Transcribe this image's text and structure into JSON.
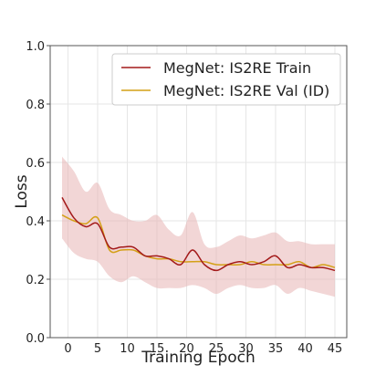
{
  "chart_data": {
    "type": "line",
    "xlabel": "Training Epoch",
    "ylabel": "Loss",
    "xlim": [
      -3,
      47
    ],
    "ylim": [
      0.0,
      1.0
    ],
    "xticks": [
      0,
      5,
      10,
      15,
      20,
      25,
      30,
      35,
      40,
      45
    ],
    "yticks": [
      0.0,
      0.2,
      0.4,
      0.6,
      0.8,
      1.0
    ],
    "ytick_labels": [
      "0.0",
      "0.2",
      "0.4",
      "0.6",
      "0.8",
      "1.0"
    ],
    "legend_position": "top-right",
    "x": [
      -1,
      1,
      3,
      5,
      7,
      9,
      11,
      13,
      15,
      17,
      19,
      21,
      23,
      25,
      27,
      29,
      31,
      33,
      35,
      37,
      39,
      41,
      43,
      45
    ],
    "series": [
      {
        "name": "MegNet: IS2RE Train",
        "color": "#a31a1a",
        "values": [
          0.48,
          0.41,
          0.38,
          0.39,
          0.31,
          0.31,
          0.31,
          0.28,
          0.28,
          0.27,
          0.25,
          0.3,
          0.25,
          0.23,
          0.25,
          0.26,
          0.25,
          0.26,
          0.28,
          0.24,
          0.25,
          0.24,
          0.24,
          0.23
        ]
      },
      {
        "name": "MegNet: IS2RE Val (ID)",
        "color": "#d4a017",
        "values": [
          0.42,
          0.4,
          0.39,
          0.41,
          0.3,
          0.3,
          0.3,
          0.28,
          0.27,
          0.27,
          0.26,
          0.26,
          0.26,
          0.25,
          0.25,
          0.25,
          0.26,
          0.25,
          0.25,
          0.25,
          0.26,
          0.24,
          0.25,
          0.24
        ]
      },
      {
        "name": "",
        "type": "band",
        "color": "#e8b4b4",
        "upper": [
          0.62,
          0.57,
          0.5,
          0.53,
          0.44,
          0.42,
          0.4,
          0.4,
          0.42,
          0.37,
          0.35,
          0.43,
          0.32,
          0.31,
          0.33,
          0.35,
          0.34,
          0.35,
          0.36,
          0.33,
          0.33,
          0.32,
          0.32,
          0.32
        ],
        "lower": [
          0.34,
          0.29,
          0.27,
          0.26,
          0.21,
          0.19,
          0.21,
          0.19,
          0.17,
          0.17,
          0.17,
          0.18,
          0.17,
          0.15,
          0.17,
          0.18,
          0.17,
          0.17,
          0.18,
          0.15,
          0.17,
          0.16,
          0.15,
          0.14
        ]
      }
    ]
  }
}
